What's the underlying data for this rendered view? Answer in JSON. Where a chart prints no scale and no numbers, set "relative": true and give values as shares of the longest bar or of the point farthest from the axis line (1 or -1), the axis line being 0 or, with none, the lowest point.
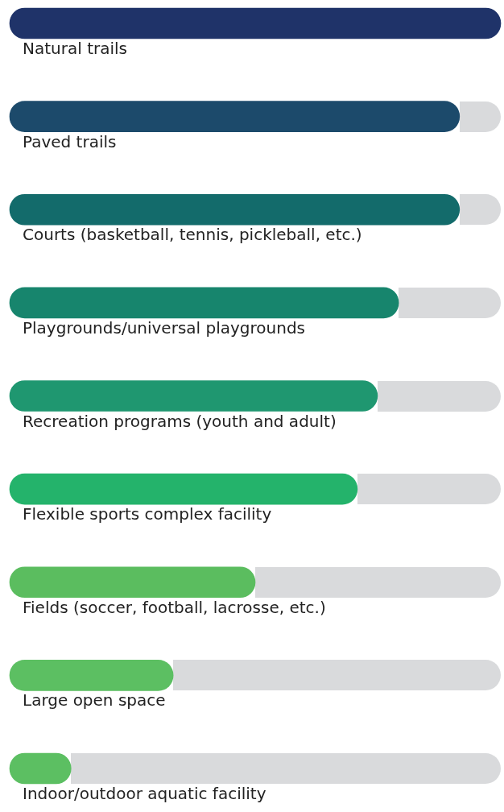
{
  "chart_data": {
    "type": "bar",
    "orientation": "horizontal",
    "relative": true,
    "categories": [
      "Natural trails",
      "Paved trails",
      "Courts (basketball, tennis, pickleball, etc.)",
      "Playgrounds/universal playgrounds",
      "Recreation programs (youth and adult)",
      "Flexible sports complex facility",
      "Fields (soccer, football, lacrosse, etc.)",
      "Large open space",
      "Indoor/outdoor aquatic facility"
    ],
    "values": [
      1,
      0.916,
      0.916,
      0.792,
      0.749,
      0.708,
      0.5,
      0.333,
      0.125
    ],
    "colors": [
      "#1f3369",
      "#1c4a6b",
      "#136b6b",
      "#17856d",
      "#1f9770",
      "#24b36b",
      "#5bbd5f",
      "#5cbf62",
      "#5cbf62"
    ],
    "legend": false
  }
}
